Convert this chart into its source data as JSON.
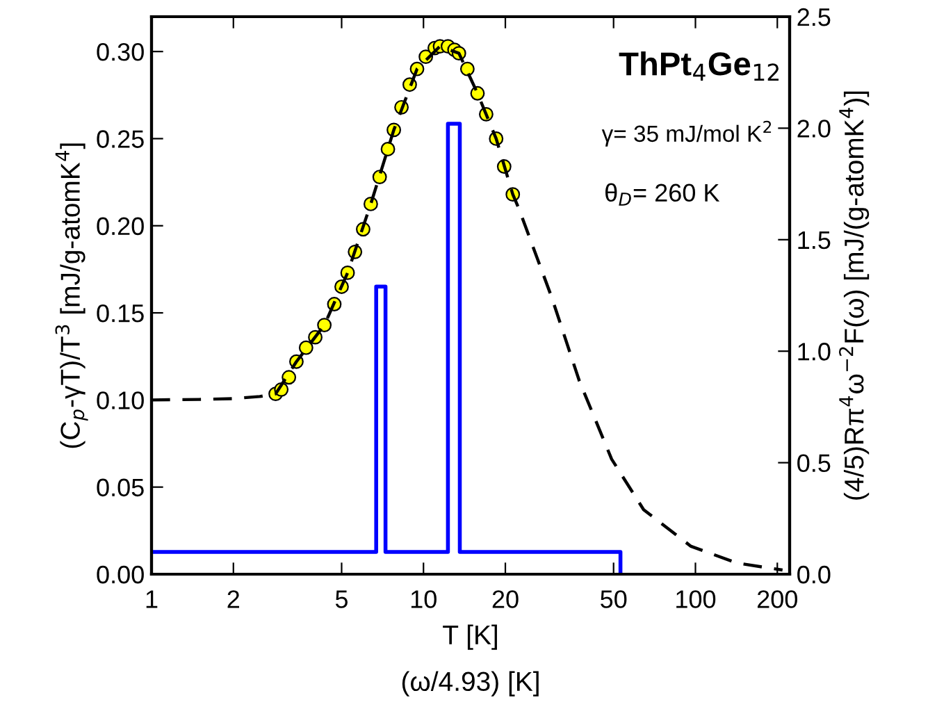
{
  "chart_data": {
    "type": "line",
    "xlabel": "T [K]",
    "ylabel": "(C$_{p}$-γT)/T$^{3}$ [mJ/g-atomK$^{4}$]",
    "y2label": "(4/5)Rπ$^{4}$ω$^{−2}$F(ω) [mJ/(g-atomK$^{4}$)]",
    "log": "x",
    "grid": false,
    "legend": false,
    "xlim": [
      1,
      222
    ],
    "xticks": [
      1,
      2,
      5,
      10,
      20,
      50,
      100,
      200
    ],
    "ylim": [
      0,
      0.32
    ],
    "yticks": [
      {
        "value": 0,
        "label": "0.00"
      },
      {
        "value": 0.05,
        "label": "0.05"
      },
      {
        "value": 0.1,
        "label": "0.10"
      },
      {
        "value": 0.15,
        "label": "0.15"
      },
      {
        "value": 0.2,
        "label": "0.20"
      },
      {
        "value": 0.25,
        "label": "0.25"
      },
      {
        "value": 0.3,
        "label": "0.30"
      }
    ],
    "y2lim": [
      0,
      2.5
    ],
    "y2ticks": [
      {
        "value": 0,
        "label": "0.0"
      },
      {
        "value": 0.5,
        "label": "0.5"
      },
      {
        "value": 1,
        "label": "1.0"
      },
      {
        "value": 1.5,
        "label": "1.5"
      },
      {
        "value": 2,
        "label": "2.0"
      },
      {
        "value": 2.5,
        "label": "2.5"
      }
    ],
    "series": [
      {
        "type": "step",
        "axis": "y2",
        "color": "#0000ff",
        "line_style": "solid",
        "marker": "none",
        "x": [
          1,
          6.7,
          6.7,
          7.25,
          7.25,
          12.3,
          12.3,
          13.6,
          13.6,
          53,
          53
        ],
        "values": [
          0.1,
          0.1,
          1.29,
          1.29,
          0.1,
          0.1,
          2.02,
          2.02,
          0.1,
          0.1,
          0
        ]
      },
      {
        "type": "scatter",
        "color": "#ffff00",
        "marker": "circle",
        "x": [
          2.86,
          3.0,
          3.2,
          3.41,
          3.7,
          4.0,
          4.32,
          4.7,
          5.0,
          5.26,
          5.6,
          6.0,
          6.4,
          6.9,
          7.4,
          7.78,
          8.3,
          8.9,
          9.47,
          10.2,
          11.0,
          11.5,
          12.3,
          13.0,
          13.5,
          14.5,
          15.8,
          17.0,
          18.5,
          19.8,
          21.3
        ],
        "values": [
          0.1035,
          0.106,
          0.113,
          0.122,
          0.13,
          0.136,
          0.143,
          0.155,
          0.165,
          0.173,
          0.185,
          0.198,
          0.2125,
          0.228,
          0.244,
          0.255,
          0.268,
          0.281,
          0.29,
          0.297,
          0.302,
          0.303,
          0.303,
          0.301,
          0.299,
          0.29,
          0.276,
          0.264,
          0.25,
          0.234,
          0.218
        ]
      },
      {
        "color": "#000000",
        "line_style": "dashed",
        "marker": "none",
        "x": [
          1,
          1.5,
          2.0,
          2.5,
          2.86,
          3.41,
          4.32,
          5.26,
          6.4,
          7.78,
          9.47,
          11.5,
          13.5,
          15.8,
          18.5,
          21.3,
          22.4,
          29.6,
          37.4,
          49.2,
          64.5,
          96.3,
          142,
          209
        ],
        "values": [
          0.1,
          0.1003,
          0.1008,
          0.102,
          0.1035,
          0.122,
          0.143,
          0.173,
          0.2125,
          0.255,
          0.29,
          0.303,
          0.299,
          0.276,
          0.25,
          0.218,
          0.21,
          0.159,
          0.111,
          0.066,
          0.037,
          0.016,
          0.0064,
          0.0024
        ]
      }
    ],
    "annotations": [
      "ThPt$_{4}$Ge$_{12}$",
      "γ= 35 mJ/mol K$^{2}$",
      "θ$_{D}$= 260 K",
      "(ω/4.93) [K]"
    ]
  }
}
